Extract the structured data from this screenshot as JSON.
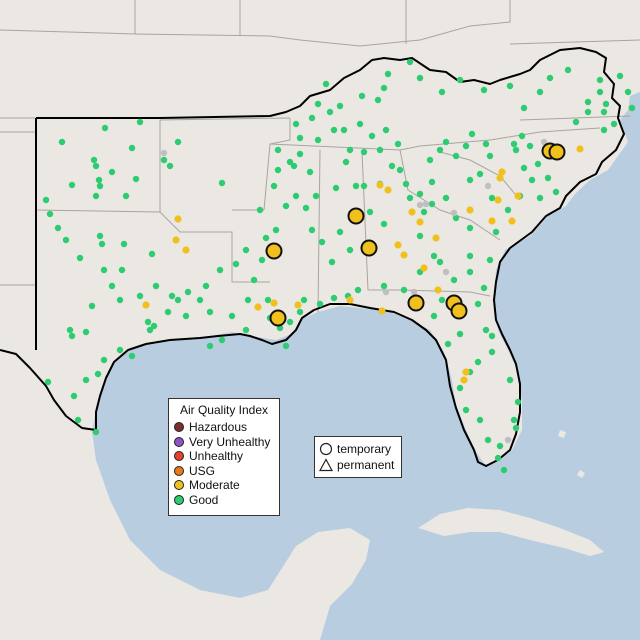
{
  "legend": {
    "title": "Air Quality Index",
    "categories": [
      {
        "label": "Hazardous",
        "color": "#7e2e2a"
      },
      {
        "label": "Very Unhealthy",
        "color": "#8f52c3"
      },
      {
        "label": "Unhealthy",
        "color": "#e8402b"
      },
      {
        "label": "USG",
        "color": "#e87a1a"
      },
      {
        "label": "Moderate",
        "color": "#f2c01d"
      },
      {
        "label": "Good",
        "color": "#2ecc71"
      }
    ]
  },
  "monitor_types": {
    "temporary_label": "temporary",
    "permanent_label": "permanent"
  },
  "colors": {
    "water": "#b9cde0",
    "land": "#ebe7e3",
    "state_border": "#a9a4a0",
    "region_outline": "#000000",
    "good": "#2ecc71",
    "moderate": "#f2c01d",
    "no_data": "#bfbfbf"
  },
  "monitors": {
    "moderate_temporary_large": 9,
    "moderate_permanent_small": 30,
    "good_permanent_small": 230,
    "no_data_small": 10
  }
}
